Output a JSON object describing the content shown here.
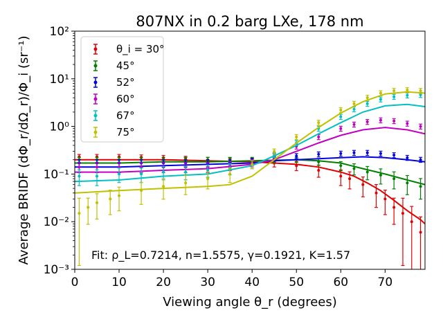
{
  "chart_data": {
    "type": "scatter",
    "title": "807NX in 0.2 barg LXe, 178 nm",
    "xlabel": "Viewing angle θ_r (degrees)",
    "ylabel": "Average BRIDF (dΦ_r/dΩ_r)/Φ_i (sr⁻¹)",
    "xlim": [
      0,
      79
    ],
    "ylim": [
      0.001,
      100
    ],
    "yscale": "log",
    "x_ticks": [
      "0",
      "10",
      "20",
      "30",
      "40",
      "50",
      "60",
      "70"
    ],
    "y_ticks": [
      "10⁻³",
      "10⁻²",
      "10⁻¹",
      "10⁰",
      "10¹",
      "10²"
    ],
    "grid": false,
    "legend_position": "top-left",
    "annotation": "Fit: ρ_L=0.7214, n=1.5575, γ=0.1921, K=1.57",
    "series": [
      {
        "name": "θ_i = 30°",
        "color": "#e00000",
        "data": [
          [
            1,
            0.23
          ],
          [
            5,
            0.23
          ],
          [
            10,
            0.23
          ],
          [
            15,
            0.225
          ],
          [
            20,
            0.22
          ],
          [
            25,
            0.21
          ],
          [
            30,
            0.2
          ],
          [
            35,
            0.19
          ],
          [
            40,
            0.18
          ],
          [
            45,
            0.17
          ],
          [
            50,
            0.15
          ],
          [
            55,
            0.12
          ],
          [
            60,
            0.09
          ],
          [
            62,
            0.08
          ],
          [
            65,
            0.06
          ],
          [
            68,
            0.04
          ],
          [
            70,
            0.03
          ],
          [
            72,
            0.02
          ],
          [
            74,
            0.015
          ],
          [
            76,
            0.01
          ],
          [
            78,
            0.006
          ]
        ],
        "fit": [
          [
            0,
            0.2
          ],
          [
            10,
            0.2
          ],
          [
            20,
            0.2
          ],
          [
            30,
            0.19
          ],
          [
            40,
            0.18
          ],
          [
            45,
            0.17
          ],
          [
            50,
            0.16
          ],
          [
            55,
            0.14
          ],
          [
            60,
            0.11
          ],
          [
            63,
            0.09
          ],
          [
            66,
            0.065
          ],
          [
            69,
            0.045
          ],
          [
            72,
            0.028
          ],
          [
            75,
            0.017
          ],
          [
            78,
            0.011
          ],
          [
            79,
            0.009
          ]
        ]
      },
      {
        "name": "45°",
        "color": "#008000",
        "data": [
          [
            1,
            0.2
          ],
          [
            5,
            0.2
          ],
          [
            10,
            0.2
          ],
          [
            15,
            0.2
          ],
          [
            20,
            0.2
          ],
          [
            25,
            0.2
          ],
          [
            30,
            0.2
          ],
          [
            35,
            0.2
          ],
          [
            40,
            0.2
          ],
          [
            45,
            0.2
          ],
          [
            50,
            0.2
          ],
          [
            55,
            0.18
          ],
          [
            60,
            0.15
          ],
          [
            63,
            0.13
          ],
          [
            66,
            0.11
          ],
          [
            69,
            0.095
          ],
          [
            72,
            0.08
          ],
          [
            75,
            0.065
          ],
          [
            78,
            0.055
          ]
        ],
        "fit": [
          [
            0,
            0.17
          ],
          [
            10,
            0.17
          ],
          [
            20,
            0.18
          ],
          [
            30,
            0.18
          ],
          [
            40,
            0.19
          ],
          [
            50,
            0.2
          ],
          [
            55,
            0.19
          ],
          [
            60,
            0.17
          ],
          [
            65,
            0.13
          ],
          [
            70,
            0.1
          ],
          [
            75,
            0.075
          ],
          [
            79,
            0.06
          ]
        ]
      },
      {
        "name": "52°",
        "color": "#0000e0",
        "data": [
          [
            1,
            0.17
          ],
          [
            5,
            0.17
          ],
          [
            10,
            0.17
          ],
          [
            15,
            0.17
          ],
          [
            20,
            0.17
          ],
          [
            25,
            0.17
          ],
          [
            30,
            0.17
          ],
          [
            35,
            0.17
          ],
          [
            40,
            0.19
          ],
          [
            45,
            0.21
          ],
          [
            50,
            0.24
          ],
          [
            55,
            0.26
          ],
          [
            60,
            0.27
          ],
          [
            63,
            0.28
          ],
          [
            66,
            0.28
          ],
          [
            69,
            0.27
          ],
          [
            72,
            0.25
          ],
          [
            75,
            0.22
          ],
          [
            78,
            0.2
          ]
        ],
        "fit": [
          [
            0,
            0.14
          ],
          [
            10,
            0.14
          ],
          [
            20,
            0.15
          ],
          [
            30,
            0.16
          ],
          [
            40,
            0.17
          ],
          [
            45,
            0.19
          ],
          [
            50,
            0.2
          ],
          [
            55,
            0.21
          ],
          [
            60,
            0.22
          ],
          [
            65,
            0.23
          ],
          [
            70,
            0.22
          ],
          [
            75,
            0.2
          ],
          [
            79,
            0.18
          ]
        ]
      },
      {
        "name": "60°",
        "color": "#c000c0",
        "data": [
          [
            1,
            0.14
          ],
          [
            5,
            0.14
          ],
          [
            10,
            0.14
          ],
          [
            15,
            0.14
          ],
          [
            20,
            0.14
          ],
          [
            25,
            0.14
          ],
          [
            30,
            0.14
          ],
          [
            35,
            0.15
          ],
          [
            40,
            0.17
          ],
          [
            45,
            0.24
          ],
          [
            50,
            0.38
          ],
          [
            55,
            0.6
          ],
          [
            60,
            0.9
          ],
          [
            63,
            1.1
          ],
          [
            66,
            1.25
          ],
          [
            69,
            1.35
          ],
          [
            72,
            1.3
          ],
          [
            75,
            1.15
          ],
          [
            78,
            1.0
          ]
        ],
        "fit": [
          [
            0,
            0.11
          ],
          [
            10,
            0.11
          ],
          [
            20,
            0.12
          ],
          [
            30,
            0.13
          ],
          [
            40,
            0.16
          ],
          [
            45,
            0.2
          ],
          [
            50,
            0.3
          ],
          [
            55,
            0.45
          ],
          [
            60,
            0.65
          ],
          [
            65,
            0.85
          ],
          [
            70,
            0.95
          ],
          [
            75,
            0.85
          ],
          [
            79,
            0.7
          ]
        ]
      },
      {
        "name": "67°",
        "color": "#00c0c0",
        "data": [
          [
            1,
            0.09
          ],
          [
            5,
            0.09
          ],
          [
            10,
            0.1
          ],
          [
            15,
            0.1
          ],
          [
            20,
            0.11
          ],
          [
            25,
            0.11
          ],
          [
            30,
            0.12
          ],
          [
            35,
            0.13
          ],
          [
            40,
            0.16
          ],
          [
            45,
            0.25
          ],
          [
            50,
            0.45
          ],
          [
            55,
            0.9
          ],
          [
            60,
            1.6
          ],
          [
            63,
            2.3
          ],
          [
            66,
            3.0
          ],
          [
            69,
            3.7
          ],
          [
            72,
            4.2
          ],
          [
            75,
            4.5
          ],
          [
            78,
            4.6
          ]
        ],
        "fit": [
          [
            0,
            0.07
          ],
          [
            10,
            0.075
          ],
          [
            20,
            0.09
          ],
          [
            30,
            0.1
          ],
          [
            40,
            0.15
          ],
          [
            45,
            0.24
          ],
          [
            50,
            0.4
          ],
          [
            55,
            0.7
          ],
          [
            60,
            1.2
          ],
          [
            65,
            2.0
          ],
          [
            70,
            2.7
          ],
          [
            75,
            2.9
          ],
          [
            79,
            2.6
          ]
        ]
      },
      {
        "name": "75°",
        "color": "#c0c000",
        "data": [
          [
            1,
            0.015
          ],
          [
            3,
            0.02
          ],
          [
            5,
            0.025
          ],
          [
            8,
            0.03
          ],
          [
            10,
            0.035
          ],
          [
            15,
            0.045
          ],
          [
            20,
            0.055
          ],
          [
            25,
            0.065
          ],
          [
            30,
            0.08
          ],
          [
            35,
            0.1
          ],
          [
            40,
            0.16
          ],
          [
            45,
            0.3
          ],
          [
            50,
            0.6
          ],
          [
            55,
            1.2
          ],
          [
            60,
            2.2
          ],
          [
            63,
            3.0
          ],
          [
            66,
            4.0
          ],
          [
            69,
            5.0
          ],
          [
            72,
            5.6
          ],
          [
            75,
            5.8
          ],
          [
            78,
            5.6
          ]
        ],
        "fit": [
          [
            0,
            0.04
          ],
          [
            10,
            0.045
          ],
          [
            20,
            0.05
          ],
          [
            30,
            0.055
          ],
          [
            35,
            0.06
          ],
          [
            40,
            0.09
          ],
          [
            45,
            0.2
          ],
          [
            50,
            0.45
          ],
          [
            55,
            0.95
          ],
          [
            60,
            1.9
          ],
          [
            65,
            3.3
          ],
          [
            70,
            4.8
          ],
          [
            75,
            5.3
          ],
          [
            79,
            5.0
          ]
        ]
      }
    ]
  }
}
